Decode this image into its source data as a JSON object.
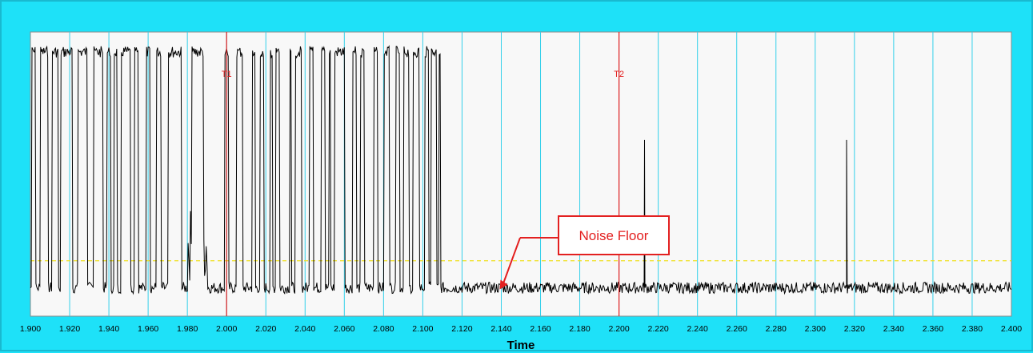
{
  "chart_data": {
    "type": "line",
    "xlabel": "Time",
    "ylabel": "",
    "xlim": [
      1.9,
      2.4
    ],
    "ylim": [
      0,
      1
    ],
    "x_ticks": [
      "1.900",
      "1.920",
      "1.940",
      "1.960",
      "1.980",
      "2.000",
      "2.020",
      "2.040",
      "2.060",
      "2.080",
      "2.100",
      "2.120",
      "2.140",
      "2.160",
      "2.180",
      "2.200",
      "2.220",
      "2.240",
      "2.260",
      "2.280",
      "2.300",
      "2.320",
      "2.340",
      "2.360",
      "2.380",
      "2.400"
    ],
    "grid": "vertical",
    "cursors": [
      {
        "label": "T1",
        "x": 2.0
      },
      {
        "label": "T2",
        "x": 2.2
      }
    ],
    "threshold": {
      "y": 0.195,
      "style": "dashed",
      "color": "#f0e020"
    },
    "noise_floor": 0.1,
    "high_level": 0.95,
    "bursts": [
      [
        1.9005,
        1.9025
      ],
      [
        1.905,
        1.909
      ],
      [
        1.911,
        1.914
      ],
      [
        1.9155,
        1.9215
      ],
      [
        1.924,
        1.929
      ],
      [
        1.932,
        1.937
      ],
      [
        1.939,
        1.941
      ],
      [
        1.9425,
        1.944
      ],
      [
        1.946,
        1.951
      ],
      [
        1.953,
        1.955
      ],
      [
        1.959,
        1.961
      ],
      [
        1.964,
        1.9665
      ],
      [
        1.97,
        1.977
      ],
      [
        1.982,
        1.988
      ],
      [
        1.999,
        2.001
      ],
      [
        2.005,
        2.008
      ],
      [
        2.013,
        2.0145
      ],
      [
        2.017,
        2.019
      ],
      [
        2.022,
        2.0235
      ],
      [
        2.025,
        2.027
      ],
      [
        2.032,
        2.033
      ],
      [
        2.035,
        2.038
      ],
      [
        2.042,
        2.044
      ],
      [
        2.048,
        2.05
      ],
      [
        2.052,
        2.053
      ],
      [
        2.055,
        2.06
      ],
      [
        2.064,
        2.066
      ],
      [
        2.068,
        2.07
      ],
      [
        2.075,
        2.077
      ],
      [
        2.08,
        2.083
      ],
      [
        2.086,
        2.088
      ],
      [
        2.09,
        2.093
      ],
      [
        2.095,
        2.098
      ],
      [
        2.101,
        2.103
      ],
      [
        2.104,
        2.107
      ],
      [
        2.108,
        2.109
      ]
    ],
    "dense_region": [
      1.98,
      1.99
    ],
    "spikes": [
      {
        "x": 2.213,
        "y": 0.62
      },
      {
        "x": 2.316,
        "y": 0.62
      }
    ],
    "annotations": [
      {
        "text": "Noise Floor",
        "x": 2.14,
        "y": 0.1
      }
    ]
  },
  "colors": {
    "frame": "#1ee1f8",
    "plot_bg": "#f8f8f8",
    "grid": "#33d0ea",
    "cursor": "#e32020",
    "trace": "#000000",
    "threshold": "#f0e020"
  }
}
